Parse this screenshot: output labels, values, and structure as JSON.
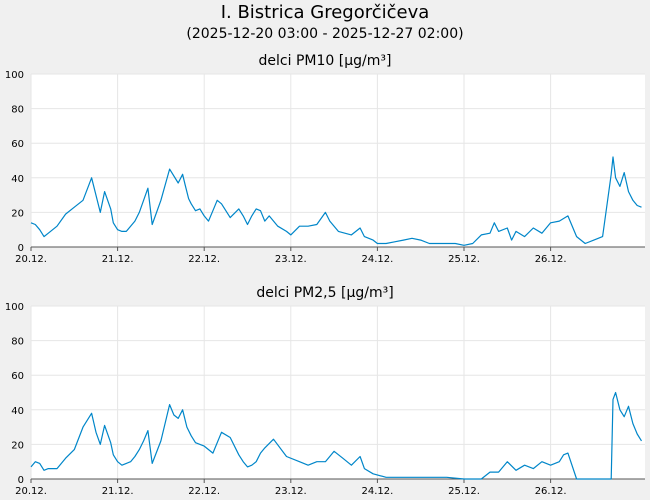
{
  "header": {
    "title": "I. Bistrica Gregorčičeva",
    "subtitle": "(2025-12-20 03:00 - 2025-12-27 02:00)"
  },
  "colors": {
    "line": "#0086c9",
    "plot_background": "#ffffff",
    "page_background": "#f0f0f0",
    "grid": "#e6e6e6"
  },
  "chart_data": [
    {
      "type": "line",
      "title": "delci PM10 [µg/m³]",
      "xlabel": "",
      "ylabel": "",
      "x_unit": "days from 20.12. 00:00",
      "xlim": [
        0.0,
        7.09
      ],
      "ylim": [
        0,
        100
      ],
      "yticks": [
        0,
        20,
        40,
        60,
        80,
        100
      ],
      "xticks": [
        0,
        1,
        2,
        3,
        4,
        5,
        6
      ],
      "xtick_labels": [
        "20.12.",
        "21.12.",
        "22.12.",
        "23.12.",
        "24.12.",
        "25.12.",
        "26.12."
      ],
      "grid": true,
      "legend": "none",
      "series": [
        {
          "x": [
            0.0,
            0.05,
            0.1,
            0.15,
            0.2,
            0.3,
            0.4,
            0.5,
            0.6,
            0.7,
            0.8,
            0.85,
            0.92,
            0.95,
            1.0,
            1.05,
            1.1,
            1.15,
            1.2,
            1.25,
            1.3,
            1.35,
            1.4,
            1.5,
            1.6,
            1.7,
            1.75,
            1.78,
            1.82,
            1.85,
            1.9,
            1.95,
            2.0,
            2.05,
            2.1,
            2.15,
            2.2,
            2.3,
            2.4,
            2.45,
            2.5,
            2.55,
            2.6,
            2.65,
            2.7,
            2.75,
            2.85,
            2.95,
            3.0,
            3.1,
            3.2,
            3.3,
            3.4,
            3.45,
            3.55,
            3.7,
            3.8,
            3.85,
            3.95,
            4.0,
            4.1,
            4.2,
            4.3,
            4.4,
            4.5,
            4.6,
            4.7,
            4.8,
            4.9,
            5.0,
            5.1,
            5.2,
            5.3,
            5.35,
            5.4,
            5.5,
            5.55,
            5.6,
            5.7,
            5.8,
            5.9,
            6.0,
            6.1,
            6.2,
            6.3,
            6.4,
            6.5,
            6.6,
            6.7,
            6.72,
            6.75,
            6.8,
            6.85,
            6.9,
            6.95,
            7.0,
            7.05
          ],
          "y": [
            14,
            13,
            10,
            6,
            8,
            12,
            19,
            23,
            27,
            40,
            20,
            32,
            22,
            14,
            10,
            9,
            9,
            12,
            15,
            20,
            27,
            34,
            13,
            27,
            45,
            37,
            42,
            36,
            28,
            25,
            21,
            22,
            18,
            15,
            21,
            27,
            25,
            17,
            22,
            18,
            13,
            18,
            22,
            21,
            15,
            18,
            12,
            9,
            7,
            12,
            12,
            13,
            20,
            15,
            9,
            7,
            11,
            6,
            4,
            2,
            2,
            3,
            4,
            5,
            4,
            2,
            2,
            2,
            2,
            1,
            2,
            7,
            8,
            14,
            9,
            11,
            4,
            9,
            6,
            11,
            8,
            14,
            15,
            18,
            6,
            2,
            4,
            6,
            42,
            52,
            40,
            35,
            43,
            32,
            27,
            24,
            23
          ]
        }
      ]
    },
    {
      "type": "line",
      "title": "delci PM2,5 [µg/m³]",
      "xlabel": "",
      "ylabel": "",
      "x_unit": "days from 20.12. 00:00",
      "xlim": [
        0.0,
        7.09
      ],
      "ylim": [
        0,
        100
      ],
      "yticks": [
        0,
        20,
        40,
        60,
        80,
        100
      ],
      "xticks": [
        0,
        1,
        2,
        3,
        4,
        5,
        6
      ],
      "xtick_labels": [
        "20.12.",
        "21.12.",
        "22.12.",
        "23.12.",
        "24.12.",
        "25.12.",
        "26.12."
      ],
      "grid": true,
      "legend": "none",
      "series": [
        {
          "x": [
            0.0,
            0.05,
            0.1,
            0.15,
            0.2,
            0.3,
            0.4,
            0.5,
            0.6,
            0.7,
            0.75,
            0.8,
            0.85,
            0.92,
            0.95,
            1.0,
            1.05,
            1.1,
            1.15,
            1.2,
            1.25,
            1.3,
            1.35,
            1.4,
            1.5,
            1.6,
            1.65,
            1.7,
            1.75,
            1.8,
            1.85,
            1.9,
            2.0,
            2.1,
            2.2,
            2.3,
            2.4,
            2.45,
            2.5,
            2.55,
            2.6,
            2.65,
            2.7,
            2.8,
            2.95,
            3.1,
            3.2,
            3.3,
            3.4,
            3.5,
            3.6,
            3.7,
            3.8,
            3.85,
            3.95,
            4.1,
            4.3,
            4.5,
            4.8,
            5.0,
            5.2,
            5.3,
            5.4,
            5.5,
            5.6,
            5.7,
            5.8,
            5.9,
            6.0,
            6.1,
            6.15,
            6.2,
            6.3,
            6.5,
            6.6,
            6.7,
            6.72,
            6.75,
            6.8,
            6.85,
            6.9,
            6.95,
            7.0,
            7.05
          ],
          "y": [
            7,
            10,
            9,
            5,
            6,
            6,
            12,
            17,
            30,
            38,
            27,
            20,
            31,
            21,
            14,
            10,
            8,
            9,
            10,
            13,
            17,
            22,
            28,
            9,
            22,
            43,
            37,
            35,
            40,
            30,
            25,
            21,
            19,
            15,
            27,
            24,
            14,
            10,
            7,
            8,
            10,
            15,
            18,
            23,
            13,
            10,
            8,
            10,
            10,
            16,
            12,
            8,
            13,
            6,
            3,
            1,
            1,
            1,
            1,
            0,
            0,
            4,
            4,
            10,
            5,
            8,
            6,
            10,
            8,
            10,
            14,
            15,
            0,
            0,
            0,
            0,
            46,
            50,
            40,
            36,
            42,
            32,
            26,
            22
          ]
        }
      ]
    }
  ]
}
